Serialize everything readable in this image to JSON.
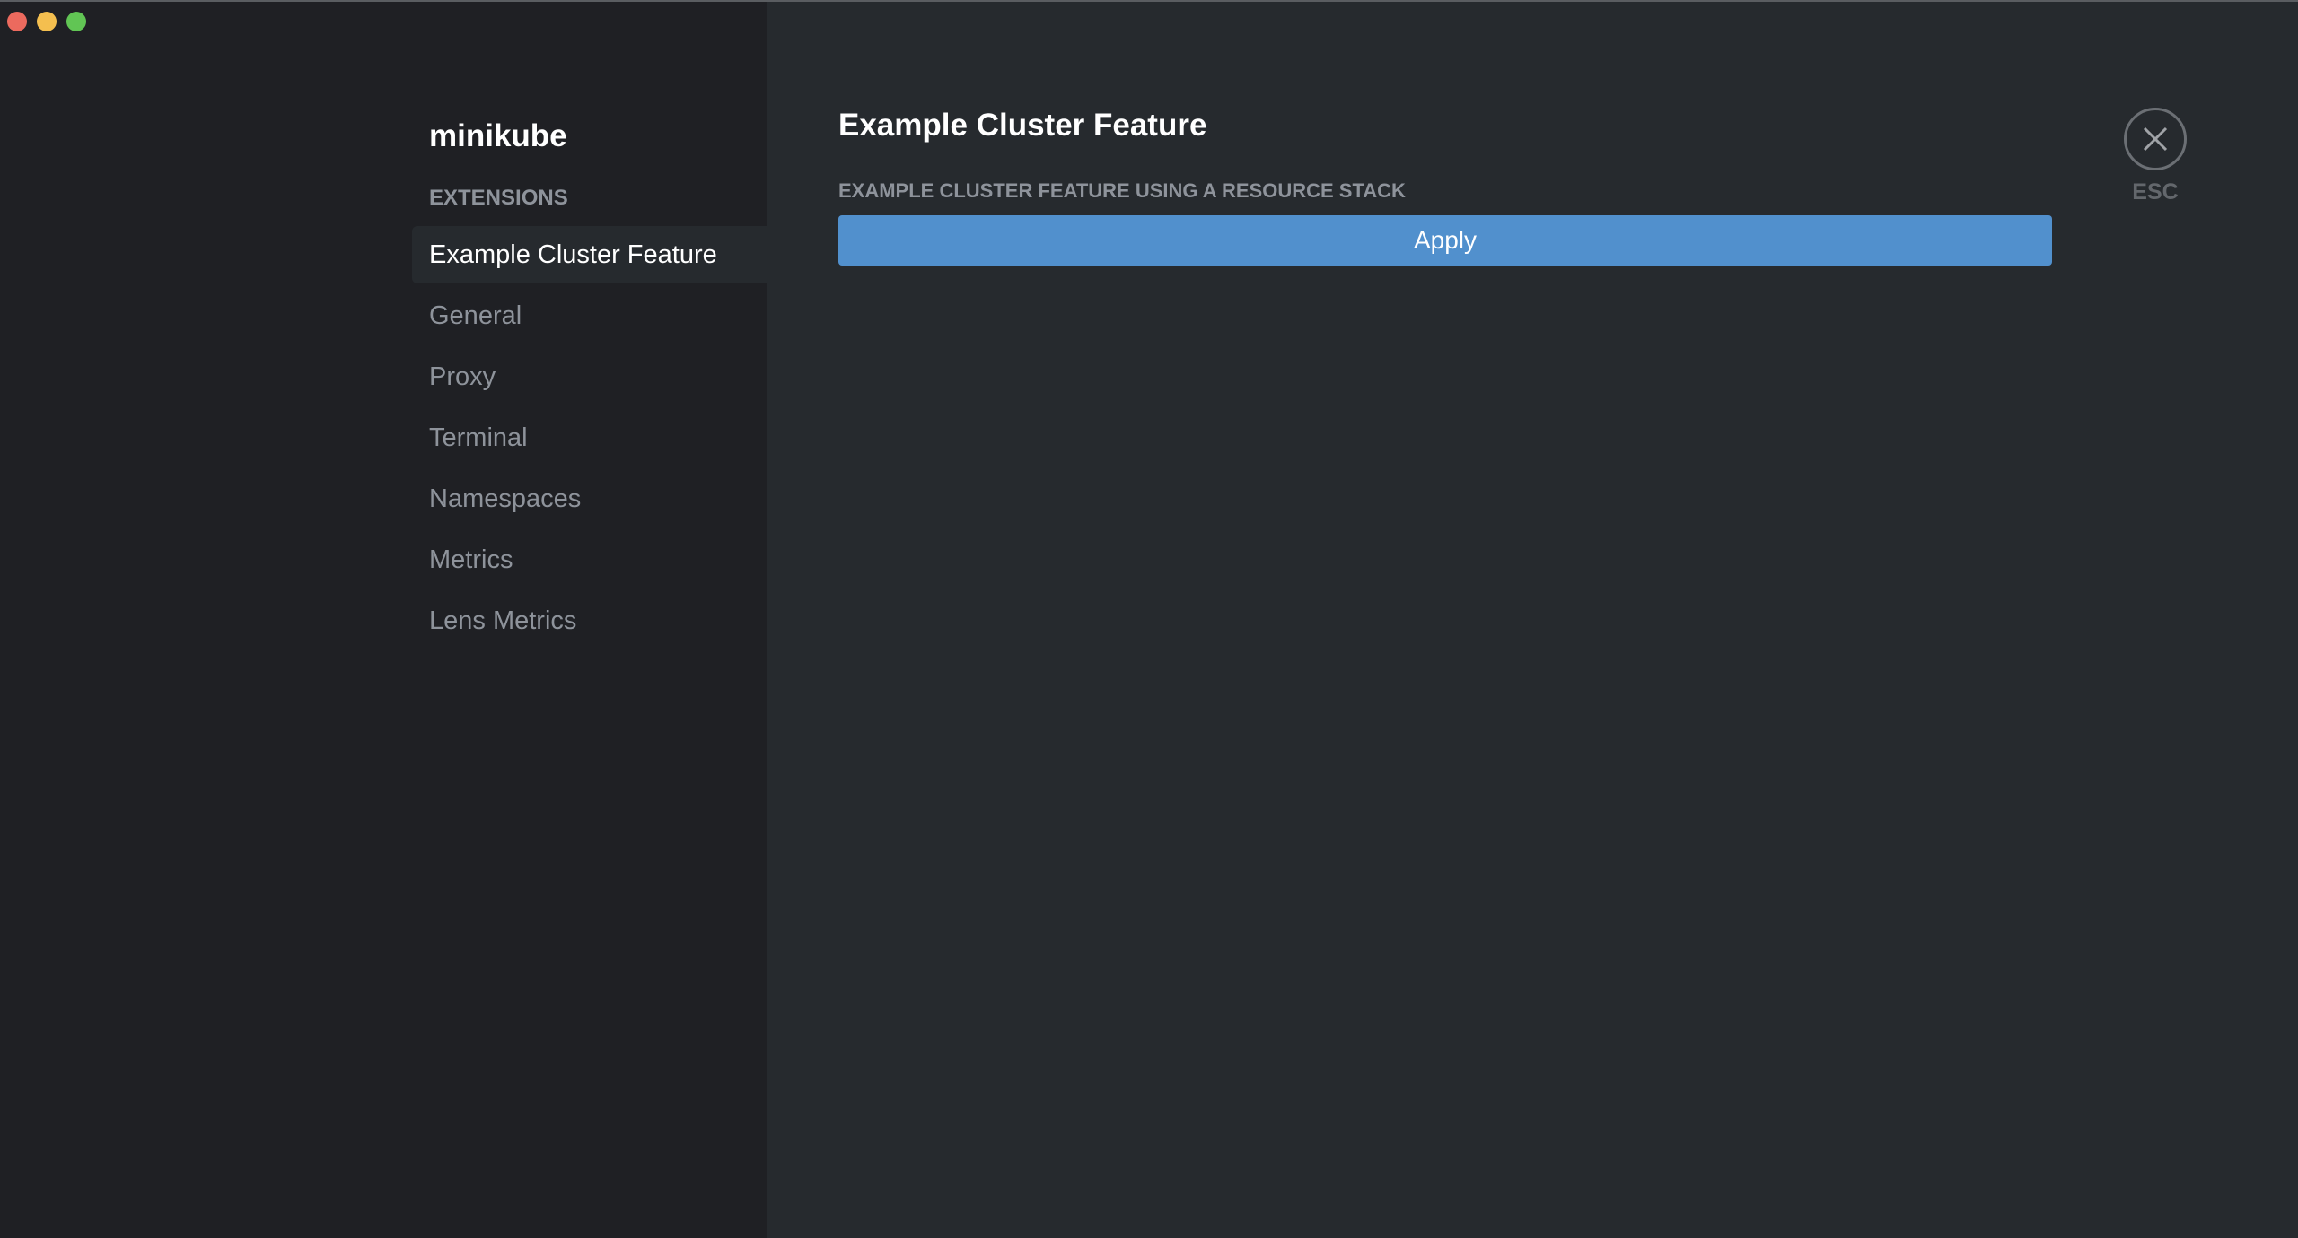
{
  "window": {
    "controls": {
      "close_color": "#ec6a5e",
      "minimize_color": "#f4bf4f",
      "maximize_color": "#61c554"
    }
  },
  "sidebar": {
    "cluster_name": "minikube",
    "section_label": "EXTENSIONS",
    "items": [
      {
        "label": "Example Cluster Feature",
        "active": true
      },
      {
        "label": "General"
      },
      {
        "label": "Proxy"
      },
      {
        "label": "Terminal"
      },
      {
        "label": "Namespaces"
      },
      {
        "label": "Metrics"
      },
      {
        "label": "Lens Metrics"
      }
    ]
  },
  "main": {
    "title": "Example Cluster Feature",
    "subheading": "EXAMPLE CLUSTER FEATURE USING A RESOURCE STACK",
    "apply_label": "Apply",
    "accent_color": "#5190cd",
    "close_label": "ESC"
  }
}
